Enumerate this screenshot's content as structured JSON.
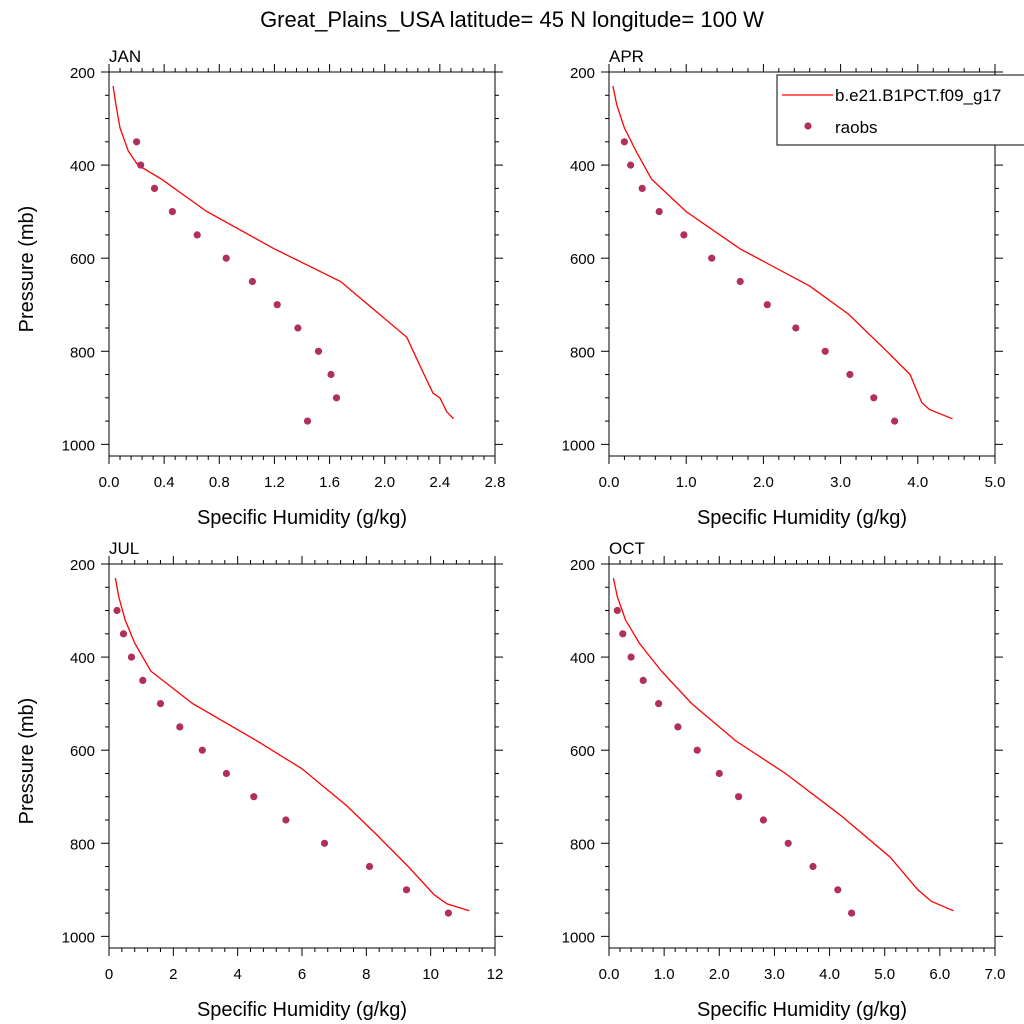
{
  "figure": {
    "title": "Great_Plains_USA  latitude= 45 N longitude= 100 W"
  },
  "legend": {
    "model_label": "b.e21.B1PCT.f09_g17",
    "obs_label": "raobs"
  },
  "colors": {
    "model_line": "#ff0000",
    "obs_marker": "#b0305a",
    "axes": "#000000"
  },
  "chart_data": [
    {
      "type": "line",
      "panel_label": "JAN",
      "xlabel": "Specific Humidity (g/kg)",
      "ylabel": "Pressure (mb)",
      "xlim": [
        0,
        2.8
      ],
      "ylim": [
        1025,
        200
      ],
      "y_inverted": true,
      "xticks": [
        0,
        0.4,
        0.8,
        1.2,
        1.6,
        2.0,
        2.4,
        2.8
      ],
      "xtick_labels": [
        "0.0",
        "0.4",
        "0.8",
        "1.2",
        "1.6",
        "2.0",
        "2.4",
        "2.8"
      ],
      "yticks": [
        200,
        400,
        600,
        800,
        1000
      ],
      "ytick_labels": [
        "200",
        "400",
        "600",
        "800",
        "1000"
      ],
      "series": [
        {
          "name": "b.e21.B1PCT.f09_g17",
          "kind": "line",
          "x": [
            0.03,
            0.05,
            0.08,
            0.14,
            0.21,
            0.38,
            0.71,
            1.2,
            1.68,
            2.16,
            2.27,
            2.35,
            2.4,
            2.45,
            2.5
          ],
          "y": [
            230,
            270,
            320,
            370,
            400,
            430,
            500,
            580,
            650,
            770,
            840,
            890,
            900,
            930,
            945
          ]
        },
        {
          "name": "raobs",
          "kind": "marker",
          "x": [
            0.2,
            0.23,
            0.33,
            0.46,
            0.64,
            0.85,
            1.04,
            1.22,
            1.37,
            1.52,
            1.61,
            1.65,
            1.44
          ],
          "y": [
            350,
            400,
            450,
            500,
            550,
            600,
            650,
            700,
            750,
            800,
            850,
            900,
            950
          ]
        }
      ]
    },
    {
      "type": "line",
      "panel_label": "APR",
      "xlabel": "Specific Humidity (g/kg)",
      "ylabel": "",
      "xlim": [
        0,
        5.0
      ],
      "ylim": [
        1025,
        200
      ],
      "y_inverted": true,
      "xticks": [
        0,
        1,
        2,
        3,
        4,
        5
      ],
      "xtick_labels": [
        "0.0",
        "1.0",
        "2.0",
        "3.0",
        "4.0",
        "5.0"
      ],
      "yticks": [
        200,
        400,
        600,
        800,
        1000
      ],
      "ytick_labels": [
        "200",
        "400",
        "600",
        "800",
        "1000"
      ],
      "series": [
        {
          "name": "b.e21.B1PCT.f09_g17",
          "kind": "line",
          "x": [
            0.05,
            0.1,
            0.2,
            0.35,
            0.55,
            1.0,
            1.7,
            2.6,
            3.1,
            3.6,
            3.9,
            4.05,
            4.15,
            4.45
          ],
          "y": [
            230,
            270,
            320,
            370,
            430,
            500,
            580,
            660,
            720,
            800,
            850,
            910,
            925,
            945
          ]
        },
        {
          "name": "raobs",
          "kind": "marker",
          "x": [
            0.2,
            0.28,
            0.43,
            0.65,
            0.97,
            1.33,
            1.7,
            2.05,
            2.42,
            2.8,
            3.12,
            3.43,
            3.7
          ],
          "y": [
            350,
            400,
            450,
            500,
            550,
            600,
            650,
            700,
            750,
            800,
            850,
            900,
            950
          ]
        }
      ]
    },
    {
      "type": "line",
      "panel_label": "JUL",
      "xlabel": "Specific Humidity (g/kg)",
      "ylabel": "Pressure (mb)",
      "xlim": [
        0,
        12
      ],
      "ylim": [
        1025,
        200
      ],
      "y_inverted": true,
      "xticks": [
        0,
        2,
        4,
        6,
        8,
        10,
        12
      ],
      "xtick_labels": [
        "0",
        "2",
        "4",
        "6",
        "8",
        "10",
        "12"
      ],
      "yticks": [
        200,
        400,
        600,
        800,
        1000
      ],
      "ytick_labels": [
        "200",
        "400",
        "600",
        "800",
        "1000"
      ],
      "series": [
        {
          "name": "b.e21.B1PCT.f09_g17",
          "kind": "line",
          "x": [
            0.2,
            0.3,
            0.5,
            0.8,
            1.3,
            2.6,
            4.6,
            6.0,
            7.4,
            8.3,
            9.3,
            10.1,
            10.5,
            11.2
          ],
          "y": [
            230,
            270,
            320,
            370,
            430,
            500,
            580,
            640,
            720,
            780,
            850,
            910,
            930,
            945
          ]
        },
        {
          "name": "raobs",
          "kind": "marker",
          "x": [
            0.25,
            0.45,
            0.7,
            1.05,
            1.6,
            2.2,
            2.9,
            3.65,
            4.5,
            5.5,
            6.7,
            8.1,
            9.25,
            10.55
          ],
          "y": [
            300,
            350,
            400,
            450,
            500,
            550,
            600,
            650,
            700,
            750,
            800,
            850,
            900,
            950
          ]
        }
      ]
    },
    {
      "type": "line",
      "panel_label": "OCT",
      "xlabel": "Specific Humidity (g/kg)",
      "ylabel": "",
      "xlim": [
        0,
        7.0
      ],
      "ylim": [
        1025,
        200
      ],
      "y_inverted": true,
      "xticks": [
        0,
        1,
        2,
        3,
        4,
        5,
        6,
        7
      ],
      "xtick_labels": [
        "0.0",
        "1.0",
        "2.0",
        "3.0",
        "4.0",
        "5.0",
        "6.0",
        "7.0"
      ],
      "yticks": [
        200,
        400,
        600,
        800,
        1000
      ],
      "ytick_labels": [
        "200",
        "400",
        "600",
        "800",
        "1000"
      ],
      "series": [
        {
          "name": "b.e21.B1PCT.f09_g17",
          "kind": "line",
          "x": [
            0.08,
            0.15,
            0.3,
            0.55,
            0.95,
            1.5,
            2.3,
            3.2,
            4.2,
            5.1,
            5.6,
            5.85,
            6.25
          ],
          "y": [
            230,
            270,
            320,
            370,
            430,
            500,
            580,
            650,
            740,
            830,
            900,
            925,
            945
          ]
        },
        {
          "name": "raobs",
          "kind": "marker",
          "x": [
            0.15,
            0.25,
            0.4,
            0.62,
            0.9,
            1.25,
            1.6,
            2.0,
            2.35,
            2.8,
            3.25,
            3.7,
            4.15,
            4.4
          ],
          "y": [
            300,
            350,
            400,
            450,
            500,
            550,
            600,
            650,
            700,
            750,
            800,
            850,
            900,
            950
          ]
        }
      ]
    }
  ]
}
